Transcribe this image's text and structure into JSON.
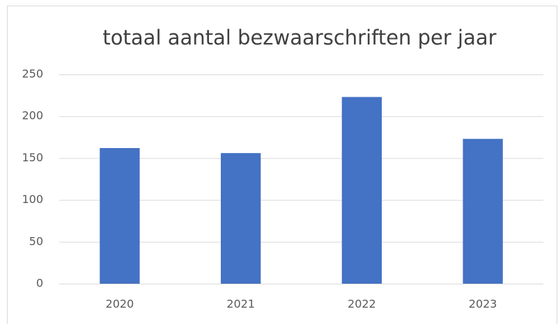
{
  "chart_data": {
    "type": "bar",
    "title": "totaal aantal bezwaarschriften per jaar",
    "categories": [
      "2020",
      "2021",
      "2022",
      "2023"
    ],
    "values": [
      162,
      156,
      223,
      173
    ],
    "color": "#4472c4",
    "ylim": [
      0,
      250
    ],
    "yticks": [
      0,
      50,
      100,
      150,
      200,
      250
    ],
    "grid": true
  }
}
